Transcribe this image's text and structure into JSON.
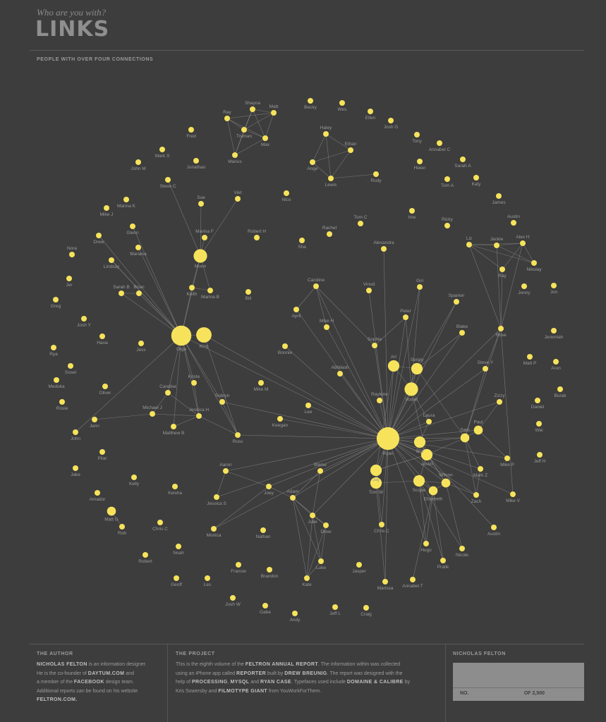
{
  "header": {
    "kicker": "Who are you with?",
    "title": "LINKS",
    "subtitle": "PEOPLE WITH OVER FOUR CONNECTIONS"
  },
  "colors": {
    "background": "#3d3d3d",
    "node": "#f6e35b",
    "edge": "#8a8a8a",
    "label": "#9a9a9a"
  },
  "network": {
    "nodes": [
      {
        "id": "Shayna",
        "w": 1
      },
      {
        "id": "Matt",
        "w": 1
      },
      {
        "id": "Ray1",
        "label": "Ray",
        "w": 1
      },
      {
        "id": "Truman",
        "w": 1
      },
      {
        "id": "Max",
        "w": 1
      },
      {
        "id": "Marius",
        "w": 1
      },
      {
        "id": "Becky",
        "w": 1
      },
      {
        "id": "Wes",
        "w": 1
      },
      {
        "id": "Ellen",
        "w": 1
      },
      {
        "id": "Josh G",
        "w": 1
      },
      {
        "id": "Haley",
        "w": 1
      },
      {
        "id": "Ethan",
        "w": 1
      },
      {
        "id": "Ange",
        "w": 1
      },
      {
        "id": "Lewis",
        "w": 1
      },
      {
        "id": "Rudy",
        "w": 1
      },
      {
        "id": "Tony",
        "w": 1
      },
      {
        "id": "Annabel C",
        "w": 1
      },
      {
        "id": "Helen",
        "w": 1
      },
      {
        "id": "Sarah A",
        "w": 1
      },
      {
        "id": "Katy",
        "w": 1
      },
      {
        "id": "Tom A",
        "w": 1
      },
      {
        "id": "James",
        "w": 1
      },
      {
        "id": "Fred",
        "w": 1
      },
      {
        "id": "Mark S",
        "w": 1
      },
      {
        "id": "John M",
        "w": 1
      },
      {
        "id": "Jonathan",
        "w": 1
      },
      {
        "id": "Steve C",
        "w": 1
      },
      {
        "id": "Sue",
        "w": 1
      },
      {
        "id": "Viet",
        "w": 1
      },
      {
        "id": "Nico",
        "w": 1
      },
      {
        "id": "Marina K",
        "w": 1
      },
      {
        "id": "Mike J",
        "w": 1
      },
      {
        "id": "Glenn",
        "w": 1
      },
      {
        "id": "Drew1",
        "label": "Drew",
        "w": 1
      },
      {
        "id": "Marina F",
        "w": 1
      },
      {
        "id": "Mariana",
        "w": 1
      },
      {
        "id": "Lindsay",
        "w": 1
      },
      {
        "id": "Moon",
        "w": 4
      },
      {
        "id": "Keith",
        "w": 1
      },
      {
        "id": "Marina B",
        "w": 1
      },
      {
        "id": "Sarah B",
        "w": 1
      },
      {
        "id": "Brian",
        "w": 1
      },
      {
        "id": "Robert H",
        "w": 1
      },
      {
        "id": "Sha",
        "w": 1
      },
      {
        "id": "Rachel",
        "w": 1
      },
      {
        "id": "Tom C",
        "w": 1
      },
      {
        "id": "Ime",
        "w": 1
      },
      {
        "id": "Alexandra",
        "w": 1
      },
      {
        "id": "Ricky",
        "w": 1
      },
      {
        "id": "Austin1",
        "label": "Austin",
        "w": 1
      },
      {
        "id": "Liz",
        "w": 1
      },
      {
        "id": "Jackie",
        "w": 1
      },
      {
        "id": "Alex H",
        "w": 1
      },
      {
        "id": "Nikolay",
        "w": 1
      },
      {
        "id": "Ray2",
        "label": "Ray",
        "w": 1
      },
      {
        "id": "Jenny",
        "w": 1
      },
      {
        "id": "Jon",
        "w": 1
      },
      {
        "id": "Nora",
        "w": 1
      },
      {
        "id": "Jer",
        "w": 1
      },
      {
        "id": "Greg",
        "w": 1
      },
      {
        "id": "Bill",
        "w": 1
      },
      {
        "id": "Caroline",
        "w": 1
      },
      {
        "id": "April",
        "w": 1
      },
      {
        "id": "Vinod",
        "w": 1
      },
      {
        "id": "Giri",
        "w": 1
      },
      {
        "id": "Sparker",
        "w": 1
      },
      {
        "id": "Peter",
        "w": 1
      },
      {
        "id": "Mike H",
        "w": 1
      },
      {
        "id": "Blake",
        "w": 1
      },
      {
        "id": "Rose",
        "w": 1
      },
      {
        "id": "Josh Y",
        "w": 1
      },
      {
        "id": "Hana",
        "w": 1
      },
      {
        "id": "Jess",
        "w": 1
      },
      {
        "id": "Olga",
        "w": 8
      },
      {
        "id": "King",
        "w": 5
      },
      {
        "id": "Bonnie",
        "w": 1
      },
      {
        "id": "Sophie",
        "w": 1
      },
      {
        "id": "Ari",
        "w": 3
      },
      {
        "id": "Sergiy",
        "w": 3
      },
      {
        "id": "Jeremiah",
        "w": 1
      },
      {
        "id": "Matt P",
        "w": 1
      },
      {
        "id": "Arun",
        "w": 1
      },
      {
        "id": "Steve Y",
        "w": 1
      },
      {
        "id": "Abhilash",
        "w": 1
      },
      {
        "id": "Kriste",
        "w": 1
      },
      {
        "id": "Candise",
        "w": 1
      },
      {
        "id": "Sobryn",
        "w": 1
      },
      {
        "id": "Mike M",
        "w": 1
      },
      {
        "id": "Raylene",
        "w": 1
      },
      {
        "id": "Vodail",
        "w": 4
      },
      {
        "id": "Zizzy",
        "w": 1
      },
      {
        "id": "Burak",
        "w": 1
      },
      {
        "id": "Daniel",
        "w": 1
      },
      {
        "id": "Rya",
        "w": 1
      },
      {
        "id": "Sosel",
        "w": 1
      },
      {
        "id": "Medoka",
        "w": 1
      },
      {
        "id": "Oliver",
        "w": 1
      },
      {
        "id": "Michael J",
        "w": 1
      },
      {
        "id": "Jessica H",
        "w": 1
      },
      {
        "id": "Lee",
        "w": 1
      },
      {
        "id": "Laura",
        "w": 1
      },
      {
        "id": "Rosie",
        "w": 1
      },
      {
        "id": "Jenn",
        "w": 1
      },
      {
        "id": "Matthew B",
        "w": 1
      },
      {
        "id": "Keegan",
        "w": 1
      },
      {
        "id": "Ryan",
        "w": 10
      },
      {
        "id": "Bro",
        "w": 3
      },
      {
        "id": "Sam",
        "w": 2
      },
      {
        "id": "Paul",
        "w": 2
      },
      {
        "id": "Wei",
        "w": 1
      },
      {
        "id": "John",
        "w": 1
      },
      {
        "id": "Russ",
        "w": 1
      },
      {
        "id": "Pilar",
        "w": 1
      },
      {
        "id": "Jeff H",
        "w": 1
      },
      {
        "id": "Aaron",
        "w": 1
      },
      {
        "id": "Blaise",
        "w": 1
      },
      {
        "id": "Jay",
        "w": 3
      },
      {
        "id": "Justin",
        "w": 3
      },
      {
        "id": "Mike P",
        "w": 1
      },
      {
        "id": "Jake",
        "w": 1
      },
      {
        "id": "Kelly",
        "w": 1
      },
      {
        "id": "Amador",
        "w": 1
      },
      {
        "id": "Keisha",
        "w": 1
      },
      {
        "id": "Joey",
        "w": 1
      },
      {
        "id": "Adam",
        "w": 1
      },
      {
        "id": "Tom W",
        "w": 3
      },
      {
        "id": "Scope",
        "w": 3
      },
      {
        "id": "Wilson",
        "w": 2
      },
      {
        "id": "Mark Z",
        "w": 1
      },
      {
        "id": "Matt G",
        "w": 2
      },
      {
        "id": "Jessica S",
        "w": 1
      },
      {
        "id": "Elizabeth",
        "w": 2
      },
      {
        "id": "Zach",
        "w": 1
      },
      {
        "id": "Mike V",
        "w": 1
      },
      {
        "id": "Rob",
        "w": 1
      },
      {
        "id": "Chris C1",
        "label": "Chris C",
        "w": 1
      },
      {
        "id": "Julie",
        "w": 1
      },
      {
        "id": "Drew2",
        "label": "Drew",
        "w": 1
      },
      {
        "id": "Chris C2",
        "label": "Chris C",
        "w": 1
      },
      {
        "id": "Monica",
        "w": 1
      },
      {
        "id": "Nathan",
        "w": 1
      },
      {
        "id": "Austin2",
        "label": "Austin",
        "w": 1
      },
      {
        "id": "Hugo",
        "w": 1
      },
      {
        "id": "Noah",
        "w": 1
      },
      {
        "id": "Nicole",
        "w": 1
      },
      {
        "id": "Robert",
        "w": 1
      },
      {
        "id": "Pratik",
        "w": 1
      },
      {
        "id": "Luke",
        "w": 1
      },
      {
        "id": "Francie",
        "w": 1
      },
      {
        "id": "Jasper",
        "w": 1
      },
      {
        "id": "Geoff",
        "w": 1
      },
      {
        "id": "Les",
        "w": 1
      },
      {
        "id": "Brandon",
        "w": 1
      },
      {
        "id": "Kate",
        "w": 1
      },
      {
        "id": "Marissa",
        "w": 1
      },
      {
        "id": "Annabel T",
        "w": 1
      },
      {
        "id": "Josh W",
        "w": 1
      },
      {
        "id": "Gabe",
        "w": 1
      },
      {
        "id": "Jeff L",
        "w": 1
      },
      {
        "id": "Craig",
        "w": 1
      },
      {
        "id": "Andy",
        "w": 1
      }
    ],
    "edges": [
      [
        "Ray1",
        "Truman"
      ],
      [
        "Ray1",
        "Max"
      ],
      [
        "Ray1",
        "Matt"
      ],
      [
        "Ray1",
        "Marius"
      ],
      [
        "Shayna",
        "Matt"
      ],
      [
        "Shayna",
        "Max"
      ],
      [
        "Shayna",
        "Truman"
      ],
      [
        "Matt",
        "Max"
      ],
      [
        "Matt",
        "Truman"
      ],
      [
        "Truman",
        "Max"
      ],
      [
        "Truman",
        "Marius"
      ],
      [
        "Max",
        "Marius"
      ],
      [
        "Shayna",
        "Marius"
      ],
      [
        "Haley",
        "Ange"
      ],
      [
        "Haley",
        "Lewis"
      ],
      [
        "Haley",
        "Ethan"
      ],
      [
        "Ethan",
        "Ange"
      ],
      [
        "Ethan",
        "Lewis"
      ],
      [
        "Lewis",
        "Rudy"
      ],
      [
        "Ange",
        "Lewis"
      ],
      [
        "Steve C",
        "Moon"
      ],
      [
        "Sue",
        "Moon"
      ],
      [
        "Viet",
        "Moon"
      ],
      [
        "Marina F",
        "Moon"
      ],
      [
        "Moon",
        "Keith"
      ],
      [
        "Moon",
        "Marina B"
      ],
      [
        "Keith",
        "Marina B"
      ],
      [
        "Keith",
        "Olga"
      ],
      [
        "Moon",
        "Olga"
      ],
      [
        "Olga",
        "King"
      ],
      [
        "Glenn",
        "Olga"
      ],
      [
        "Mariana",
        "Olga"
      ],
      [
        "Lindsay",
        "Olga"
      ],
      [
        "Drew1",
        "Olga"
      ],
      [
        "Sarah B",
        "Brian"
      ],
      [
        "Sarah B",
        "Olga"
      ],
      [
        "Brian",
        "Olga"
      ],
      [
        "Olga",
        "Kriste"
      ],
      [
        "Olga",
        "Candise"
      ],
      [
        "Olga",
        "Sobryn"
      ],
      [
        "Olga",
        "Jessica H"
      ],
      [
        "Olga",
        "Russ"
      ],
      [
        "King",
        "Russ"
      ],
      [
        "Olga",
        "Matthew B"
      ],
      [
        "Olga",
        "Ryan"
      ],
      [
        "King",
        "Ryan"
      ],
      [
        "Candise",
        "Michael J"
      ],
      [
        "Candise",
        "Jessica H"
      ],
      [
        "Kriste",
        "Jessica H"
      ],
      [
        "Michael J",
        "Jessica H"
      ],
      [
        "Matthew B",
        "Jessica H"
      ],
      [
        "Jessica H",
        "Russ"
      ],
      [
        "Sobryn",
        "Russ"
      ],
      [
        "Olga",
        "John"
      ],
      [
        "Jenn",
        "Michael J"
      ],
      [
        "Russ",
        "Ryan"
      ],
      [
        "Sobryn",
        "Ryan"
      ],
      [
        "Ryan",
        "Ari"
      ],
      [
        "Ryan",
        "Sergiy"
      ],
      [
        "Ryan",
        "Vodail"
      ],
      [
        "Ryan",
        "Laura"
      ],
      [
        "Ryan",
        "Bro"
      ],
      [
        "Ryan",
        "Sam"
      ],
      [
        "Ryan",
        "Paul"
      ],
      [
        "Ryan",
        "Jay"
      ],
      [
        "Ryan",
        "Justin"
      ],
      [
        "Ryan",
        "Tom W"
      ],
      [
        "Ryan",
        "Scope"
      ],
      [
        "Ryan",
        "Wilson"
      ],
      [
        "Ryan",
        "Elizabeth"
      ],
      [
        "Ryan",
        "Raylene"
      ],
      [
        "Ryan",
        "Sophie"
      ],
      [
        "Ryan",
        "Abhilash"
      ],
      [
        "Ryan",
        "Peter"
      ],
      [
        "Ryan",
        "Giri"
      ],
      [
        "Ryan",
        "Blake"
      ],
      [
        "Ryan",
        "Sparker"
      ],
      [
        "Ryan",
        "Rose"
      ],
      [
        "Ryan",
        "Steve Y"
      ],
      [
        "Ryan",
        "Zizzy"
      ],
      [
        "Ryan",
        "Mark Z"
      ],
      [
        "Ryan",
        "Zach"
      ],
      [
        "Ryan",
        "Caroline"
      ],
      [
        "Ryan",
        "April"
      ],
      [
        "Ryan",
        "Mike H"
      ],
      [
        "Ryan",
        "Bonnie"
      ],
      [
        "Ryan",
        "Alexandra"
      ],
      [
        "Ryan",
        "Vinod"
      ],
      [
        "Ryan",
        "Aaron"
      ],
      [
        "Ryan",
        "Adam"
      ],
      [
        "Ryan",
        "Joey"
      ],
      [
        "Ryan",
        "Jessica S"
      ],
      [
        "Ryan",
        "Monica"
      ],
      [
        "Ryan",
        "Keegan"
      ],
      [
        "Ryan",
        "Lee"
      ],
      [
        "Ryan",
        "Chris C2"
      ],
      [
        "Ryan",
        "Hugo"
      ],
      [
        "Ryan",
        "Mike P"
      ],
      [
        "Ryan",
        "Mike V"
      ],
      [
        "Ryan",
        "Marissa"
      ],
      [
        "Ryan",
        "Blaise"
      ],
      [
        "Ryan",
        "Julie"
      ],
      [
        "Ari",
        "Sergiy"
      ],
      [
        "Ari",
        "Vodail"
      ],
      [
        "Sergiy",
        "Vodail"
      ],
      [
        "Vodail",
        "Laura"
      ],
      [
        "Laura",
        "Bro"
      ],
      [
        "Bro",
        "Justin"
      ],
      [
        "Justin",
        "Jay"
      ],
      [
        "Jay",
        "Tom W"
      ],
      [
        "Tom W",
        "Scope"
      ],
      [
        "Scope",
        "Wilson"
      ],
      [
        "Scope",
        "Elizabeth"
      ],
      [
        "Wilson",
        "Elizabeth"
      ],
      [
        "Sam",
        "Paul"
      ],
      [
        "Sam",
        "Bro"
      ],
      [
        "Sam",
        "Justin"
      ],
      [
        "Paul",
        "Mike P"
      ],
      [
        "Sam",
        "Mark Z"
      ],
      [
        "Sam",
        "Zach"
      ],
      [
        "Bro",
        "Wilson"
      ],
      [
        "Justin",
        "Scope"
      ],
      [
        "Justin",
        "Wilson"
      ],
      [
        "Jay",
        "Justin"
      ],
      [
        "Sergiy",
        "Sam"
      ],
      [
        "Ari",
        "Jay"
      ],
      [
        "Vodail",
        "Justin"
      ],
      [
        "Rose",
        "Steve Y"
      ],
      [
        "Rose",
        "Liz"
      ],
      [
        "Rose",
        "Jackie"
      ],
      [
        "Rose",
        "Alex H"
      ],
      [
        "Rose",
        "Ray2"
      ],
      [
        "Liz",
        "Jackie"
      ],
      [
        "Liz",
        "Alex H"
      ],
      [
        "Liz",
        "Ray2"
      ],
      [
        "Jackie",
        "Alex H"
      ],
      [
        "Jackie",
        "Nikolay"
      ],
      [
        "Alex H",
        "Nikolay"
      ],
      [
        "Ray2",
        "Alex H"
      ],
      [
        "Liz",
        "Nikolay"
      ],
      [
        "Caroline",
        "April"
      ],
      [
        "Caroline",
        "Mike H"
      ],
      [
        "Caroline",
        "Sophie"
      ],
      [
        "Peter",
        "Sophie"
      ],
      [
        "Giri",
        "Vodail"
      ],
      [
        "Peter",
        "Vodail"
      ],
      [
        "Sparker",
        "Sergiy"
      ],
      [
        "Blake",
        "Sergiy"
      ],
      [
        "Steve Y",
        "Sam"
      ],
      [
        "Zizzy",
        "Paul"
      ],
      [
        "Rose",
        "Sam"
      ],
      [
        "Rose",
        "Mike V"
      ],
      [
        "Adam",
        "Julie"
      ],
      [
        "Adam",
        "Joey"
      ],
      [
        "Adam",
        "Luke"
      ],
      [
        "Adam",
        "Kate"
      ],
      [
        "Julie",
        "Drew2"
      ],
      [
        "Julie",
        "Luke"
      ],
      [
        "Julie",
        "Kate"
      ],
      [
        "Drew2",
        "Luke"
      ],
      [
        "Drew2",
        "Kate"
      ],
      [
        "Luke",
        "Kate"
      ],
      [
        "Adam",
        "Drew2"
      ],
      [
        "Adam",
        "Blaise"
      ],
      [
        "Blaise",
        "Julie"
      ],
      [
        "Aaron",
        "Jessica S"
      ],
      [
        "Aaron",
        "Joey"
      ],
      [
        "Joey",
        "Monica"
      ],
      [
        "Matt G",
        "Rob"
      ],
      [
        "Olga",
        "Lindsay"
      ],
      [
        "Scope",
        "Hugo"
      ],
      [
        "Elizabeth",
        "Hugo"
      ],
      [
        "Elizabeth",
        "Pratik"
      ],
      [
        "Scope",
        "Pratik"
      ],
      [
        "Wilson",
        "Nicole"
      ],
      [
        "Elizabeth",
        "Annabel T"
      ],
      [
        "Jay",
        "Chris C2"
      ],
      [
        "Tom W",
        "Marissa"
      ],
      [
        "Wilson",
        "Zach"
      ],
      [
        "Mark Z",
        "Zach"
      ],
      [
        "Scope",
        "Nicole"
      ],
      [
        "Justin",
        "Austin2"
      ]
    ]
  },
  "footer": {
    "author": {
      "heading": "THE AUTHOR",
      "l1a": "NICHOLAS FELTON",
      "l1b": " is an information designer.",
      "l2a": "He is the co-founder of ",
      "l2b": "DAYTUM.COM",
      "l2c": " and",
      "l3a": "a member of the ",
      "l3b": "FACEBOOK",
      "l3c": " design team.",
      "l4": "Additional reports can be found on his website",
      "l5": "FELTRON.COM."
    },
    "project": {
      "heading": "THE PROJECT",
      "l1a": "This is the eighth volume of the ",
      "l1b": "FELTRON ANNUAL REPORT",
      "l1c": ". The information within was collected",
      "l2a": "using an iPhone app called ",
      "l2b": "REPORTER",
      "l2c": " built by ",
      "l2d": "DREW BREUNIG",
      "l2e": ". The report was designed with the",
      "l3a": "help of ",
      "l3b": "PROCESSING",
      "l3c": ", ",
      "l3d": "MYSQL",
      "l3e": " and ",
      "l3f": "RYAN CASE",
      "l3g": ". Typefaces used include ",
      "l3h": "DOMAINE & CALIBRE",
      "l3i": " by",
      "l4a": "Kris Sowersby and ",
      "l4b": "FILMOTYPE GIANT",
      "l4c": " from YouWorkForThem."
    },
    "stat": {
      "heading": "NICHOLAS FELTON",
      "no_label": "NO.",
      "of_label": "OF 2,500"
    }
  }
}
